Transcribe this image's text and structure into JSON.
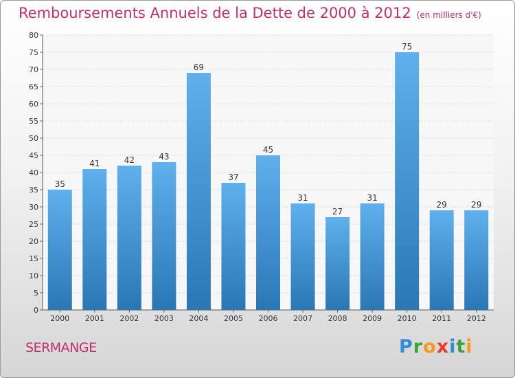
{
  "title": "Remboursements Annuels de la Dette de 2000 à 2012",
  "unit": "(en milliers d'€)",
  "commune": "SERMANGE",
  "logo": {
    "text": "Proxiti",
    "letters": [
      "P",
      "r",
      "o",
      "x",
      "i",
      "t",
      "i"
    ],
    "colors": [
      "#2e8fd6",
      "#3ea33a",
      "#f39a1c",
      "#e8382f",
      "#2e8fd6",
      "#3ea33a",
      "#f39a1c"
    ]
  },
  "colors": {
    "bar_top": "#5fb0ec",
    "bar_bottom": "#2b77b5",
    "title": "#c0306a"
  },
  "chart_data": {
    "type": "bar",
    "categories": [
      "2000",
      "2001",
      "2002",
      "2003",
      "2004",
      "2005",
      "2006",
      "2007",
      "2008",
      "2009",
      "2010",
      "2011",
      "2012"
    ],
    "values": [
      35,
      41,
      42,
      43,
      69,
      37,
      45,
      31,
      27,
      31,
      75,
      29,
      29
    ],
    "ylim": [
      0,
      80
    ],
    "yticks": [
      0,
      5,
      10,
      15,
      20,
      25,
      30,
      35,
      40,
      45,
      50,
      55,
      60,
      65,
      70,
      75,
      80
    ],
    "grid": true,
    "data_labels": true
  }
}
